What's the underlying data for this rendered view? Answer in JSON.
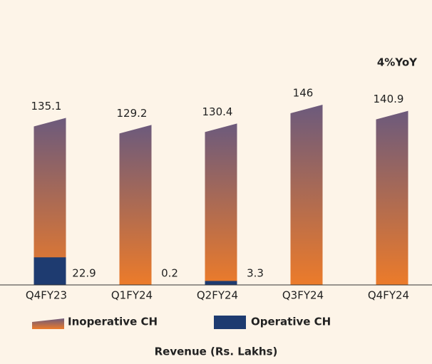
{
  "chart_data": {
    "type": "bar",
    "categories": [
      "Q4FY23",
      "Q1FY24",
      "Q2FY24",
      "Q3FY24",
      "Q4FY24"
    ],
    "series": [
      {
        "name": "Inoperative CH",
        "color": "#e97a2c",
        "values": [
          135.1,
          129.2,
          130.4,
          146,
          140.9
        ]
      },
      {
        "name": "Operative CH",
        "color": "#1e3b70",
        "values": [
          22.9,
          0.2,
          3.3,
          null,
          null
        ]
      }
    ],
    "annotation": "4%YoY",
    "xlabel": "Revenue (Rs. Lakhs)"
  }
}
